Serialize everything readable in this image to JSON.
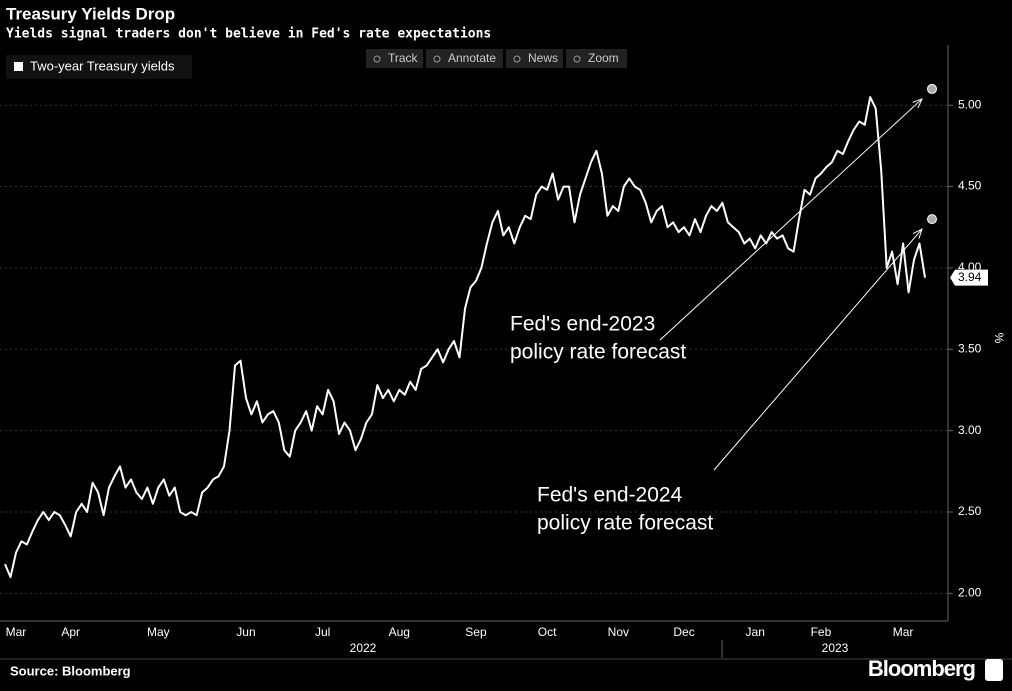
{
  "chart_data": {
    "type": "line",
    "title": "Treasury Yields Drop",
    "subtitle": "Yields signal traders don't believe in Fed's rate expectations",
    "toolbar": [
      "Track",
      "Annotate",
      "News",
      "Zoom"
    ],
    "y_axis_label": "%",
    "source": "Source: Bloomberg",
    "brand": "Bloomberg",
    "years": [
      "2022",
      "2023"
    ],
    "categories": [
      null,
      null,
      "Mar",
      null,
      null,
      null,
      null,
      null,
      null,
      null,
      null,
      null,
      "Apr",
      null,
      null,
      null,
      null,
      null,
      null,
      null,
      null,
      null,
      null,
      null,
      null,
      null,
      null,
      null,
      "May",
      null,
      null,
      null,
      null,
      null,
      null,
      null,
      null,
      null,
      null,
      null,
      null,
      null,
      null,
      null,
      "Jun",
      null,
      null,
      null,
      null,
      null,
      null,
      null,
      null,
      null,
      null,
      null,
      null,
      null,
      "Jul",
      null,
      null,
      null,
      null,
      null,
      null,
      null,
      null,
      null,
      null,
      null,
      null,
      null,
      "Aug",
      null,
      null,
      null,
      null,
      null,
      null,
      null,
      null,
      null,
      null,
      null,
      null,
      null,
      "Sep",
      null,
      null,
      null,
      null,
      null,
      null,
      null,
      null,
      null,
      null,
      null,
      null,
      "Oct",
      null,
      null,
      null,
      null,
      null,
      null,
      null,
      null,
      null,
      null,
      null,
      null,
      "Nov",
      null,
      null,
      null,
      null,
      null,
      null,
      null,
      null,
      null,
      null,
      null,
      "Dec",
      null,
      null,
      null,
      null,
      null,
      null,
      null,
      null,
      null,
      null,
      null,
      null,
      "Jan",
      null,
      null,
      null,
      null,
      null,
      null,
      null,
      null,
      null,
      null,
      null,
      "Feb",
      null,
      null,
      null,
      null,
      null,
      null,
      null,
      null,
      null,
      null,
      null,
      null,
      null,
      null,
      "Mar",
      null,
      null,
      null,
      null
    ],
    "series": [
      {
        "name": "Two-year Treasury yields",
        "color": "#ffffff",
        "values": [
          2.18,
          2.1,
          2.25,
          2.32,
          2.3,
          2.38,
          2.45,
          2.5,
          2.45,
          2.5,
          2.48,
          2.42,
          2.35,
          2.5,
          2.55,
          2.5,
          2.68,
          2.62,
          2.48,
          2.65,
          2.72,
          2.78,
          2.65,
          2.7,
          2.62,
          2.58,
          2.65,
          2.55,
          2.65,
          2.7,
          2.6,
          2.65,
          2.5,
          2.48,
          2.5,
          2.48,
          2.62,
          2.65,
          2.7,
          2.72,
          2.78,
          3.0,
          3.4,
          3.43,
          3.2,
          3.1,
          3.18,
          3.05,
          3.1,
          3.12,
          3.05,
          2.88,
          2.84,
          3.0,
          3.05,
          3.12,
          3.0,
          3.15,
          3.1,
          3.25,
          3.18,
          2.98,
          3.05,
          3.0,
          2.88,
          2.95,
          3.05,
          3.1,
          3.28,
          3.2,
          3.25,
          3.18,
          3.25,
          3.22,
          3.3,
          3.25,
          3.38,
          3.4,
          3.45,
          3.5,
          3.42,
          3.5,
          3.55,
          3.45,
          3.75,
          3.88,
          3.92,
          4.0,
          4.15,
          4.28,
          4.35,
          4.2,
          4.25,
          4.15,
          4.25,
          4.32,
          4.3,
          4.45,
          4.5,
          4.48,
          4.58,
          4.42,
          4.5,
          4.5,
          4.28,
          4.45,
          4.55,
          4.65,
          4.72,
          4.58,
          4.32,
          4.38,
          4.35,
          4.5,
          4.55,
          4.5,
          4.48,
          4.4,
          4.28,
          4.35,
          4.38,
          4.25,
          4.28,
          4.22,
          4.25,
          4.2,
          4.3,
          4.22,
          4.32,
          4.38,
          4.35,
          4.4,
          4.28,
          4.25,
          4.22,
          4.15,
          4.18,
          4.12,
          4.2,
          4.15,
          4.22,
          4.18,
          4.2,
          4.12,
          4.1,
          4.3,
          4.48,
          4.45,
          4.55,
          4.58,
          4.62,
          4.65,
          4.72,
          4.7,
          4.78,
          4.85,
          4.9,
          4.88,
          5.05,
          4.98,
          4.6,
          4.0,
          4.1,
          3.9,
          4.15,
          3.85,
          4.05,
          4.15,
          3.94
        ]
      }
    ],
    "last_label": "3.94",
    "forecasts": [
      {
        "label_lines": [
          "Fed's end-2023",
          "policy rate forecast"
        ],
        "value": 5.1
      },
      {
        "label_lines": [
          "Fed's end-2024",
          "policy rate forecast"
        ],
        "value": 4.3
      }
    ],
    "ylim": [
      1.83,
      5.37
    ],
    "yticks": [
      {
        "value": 2,
        "label": "2.00"
      },
      {
        "value": 2.5,
        "label": "2.50"
      },
      {
        "value": 3,
        "label": "3.00"
      },
      {
        "value": 3.5,
        "label": "3.50"
      },
      {
        "value": 4,
        "label": "4.00"
      },
      {
        "value": 4.5,
        "label": "4.50"
      },
      {
        "value": 5,
        "label": "5.00"
      }
    ],
    "grid": true
  }
}
